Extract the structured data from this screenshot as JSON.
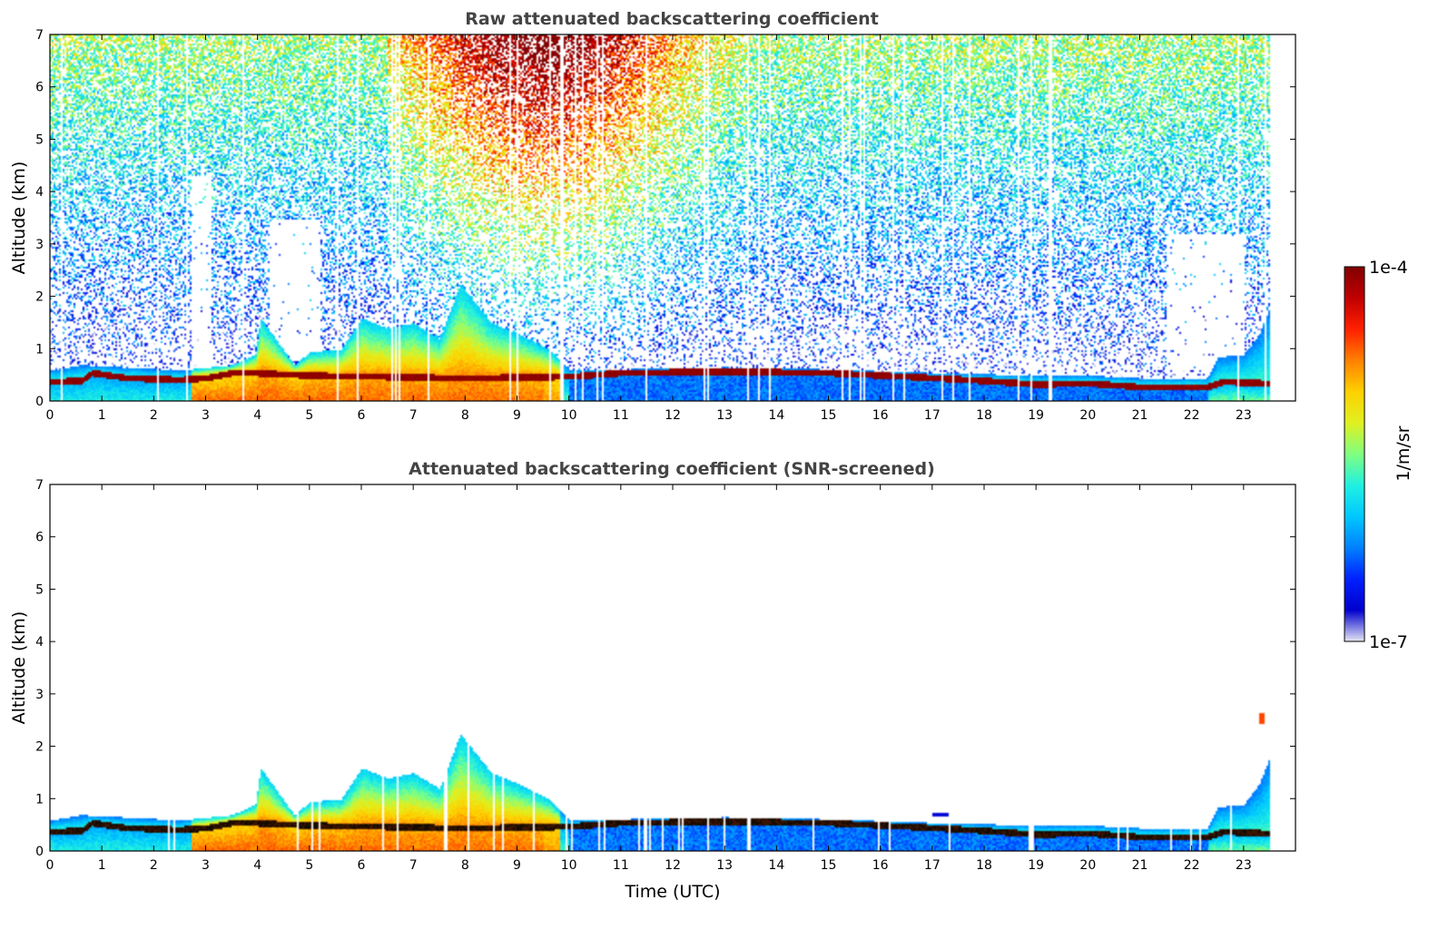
{
  "chart_data": [
    {
      "type": "heatmap",
      "title": "Raw attenuated backscattering coefficient",
      "xlabel": "",
      "ylabel": "Altitude (km)",
      "xlim": [
        0,
        24
      ],
      "ylim": [
        0,
        7
      ],
      "xticks": [
        "0",
        "1",
        "2",
        "3",
        "4",
        "5",
        "6",
        "7",
        "8",
        "9",
        "10",
        "11",
        "12",
        "13",
        "14",
        "15",
        "16",
        "17",
        "18",
        "19",
        "20",
        "21",
        "22",
        "23"
      ],
      "yticks": [
        "0",
        "1",
        "2",
        "3",
        "4",
        "5",
        "6",
        "7"
      ],
      "data_end_hour": 23.5,
      "mode": "raw"
    },
    {
      "type": "heatmap",
      "title": "Attenuated backscattering coefficient (SNR-screened)",
      "xlabel": "Time (UTC)",
      "ylabel": "Altitude (km)",
      "xlim": [
        0,
        24
      ],
      "ylim": [
        0,
        7
      ],
      "xticks": [
        "0",
        "1",
        "2",
        "3",
        "4",
        "5",
        "6",
        "7",
        "8",
        "9",
        "10",
        "11",
        "12",
        "13",
        "14",
        "15",
        "16",
        "17",
        "18",
        "19",
        "20",
        "21",
        "22",
        "23"
      ],
      "yticks": [
        "0",
        "1",
        "2",
        "3",
        "4",
        "5",
        "6",
        "7"
      ],
      "data_end_hour": 23.5,
      "mode": "screened"
    }
  ],
  "colorbar": {
    "max_label": "1e-4",
    "min_label": "1e-7",
    "label": "1/m/sr",
    "scale": "log",
    "range": [
      1e-07,
      0.0001
    ],
    "colormap": [
      "#e6e6f5",
      "#0000cc",
      "#0020ff",
      "#0080ff",
      "#00c8ff",
      "#20f0e0",
      "#80ff80",
      "#e0f020",
      "#ffd000",
      "#ff8000",
      "#ff2000",
      "#c00000",
      "#800000"
    ]
  },
  "layer_profile": {
    "description_hours": [
      0,
      0.6,
      0.8,
      1.5,
      2.5,
      3.0,
      3.5,
      3.9,
      5,
      8,
      10,
      11,
      13,
      15,
      16.5,
      18,
      19,
      20,
      21,
      22.3,
      22.6,
      23.5
    ],
    "heights_km": [
      0.38,
      0.4,
      0.55,
      0.45,
      0.42,
      0.45,
      0.55,
      0.55,
      0.5,
      0.45,
      0.48,
      0.55,
      0.58,
      0.55,
      0.48,
      0.4,
      0.33,
      0.35,
      0.28,
      0.28,
      0.38,
      0.35
    ]
  }
}
